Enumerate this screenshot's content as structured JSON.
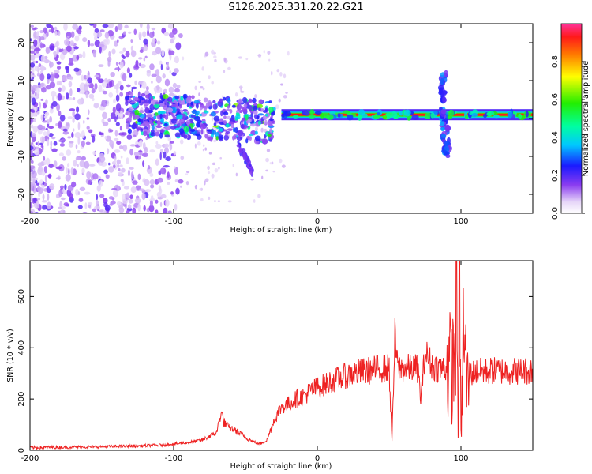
{
  "title": "S126.2025.331.20.22.G21",
  "chart_data": [
    {
      "type": "heatmap",
      "xlabel": "Height of straight line (km)",
      "ylabel": "Frequency (Hz)",
      "xlim": [
        -200,
        150
      ],
      "ylim": [
        -25,
        25
      ],
      "xticks": [
        -200,
        -100,
        0,
        100
      ],
      "yticks": [
        -20,
        -10,
        0,
        10,
        20
      ],
      "colorbar": {
        "label": "Normalized spectral amplitude",
        "range": [
          0,
          1
        ],
        "ticks": [
          "0.0",
          "0.2",
          "0.4",
          "0.6",
          "0.8"
        ]
      },
      "features": [
        {
          "name": "noise-field",
          "x": [
            -200,
            -95
          ],
          "freq": [
            -25,
            25
          ],
          "amplitude": 0.2
        },
        {
          "name": "scattered-band",
          "x": [
            -133,
            -30
          ],
          "freq": [
            -6,
            7
          ],
          "amplitude": 0.45
        },
        {
          "name": "descending-tail",
          "x": [
            -55,
            -45
          ],
          "freq": [
            -14,
            -6
          ],
          "amplitude": 0.2
        },
        {
          "name": "stable-line",
          "x": [
            -25,
            150
          ],
          "freq": [
            0.5,
            1.5
          ],
          "amplitude": 0.95
        },
        {
          "name": "spike-near-90",
          "x": [
            86,
            95
          ],
          "freq": [
            -10,
            12
          ],
          "amplitude": 0.35
        }
      ]
    },
    {
      "type": "line",
      "xlabel": "Height of straight line (km)",
      "ylabel": "SNR (10 * v/v)",
      "xlim": [
        -200,
        150
      ],
      "ylim": [
        0,
        740
      ],
      "xticks": [
        -200,
        -100,
        0,
        100
      ],
      "yticks": [
        0,
        200,
        400,
        600
      ],
      "series": [
        {
          "name": "SNR",
          "color": "#ee2222",
          "x": [
            -200,
            -180,
            -160,
            -140,
            -120,
            -110,
            -100,
            -90,
            -80,
            -75,
            -70,
            -67,
            -65,
            -62,
            -58,
            -55,
            -50,
            -45,
            -40,
            -35,
            -30,
            -25,
            -20,
            -15,
            -10,
            -5,
            0,
            5,
            10,
            15,
            20,
            25,
            30,
            35,
            40,
            45,
            50,
            52,
            54,
            56,
            60,
            65,
            70,
            72,
            75,
            80,
            85,
            90,
            95,
            97,
            98,
            99,
            100,
            102,
            104,
            106,
            110,
            120,
            130,
            140,
            150
          ],
          "y": [
            10,
            12,
            13,
            15,
            18,
            20,
            25,
            30,
            40,
            55,
            70,
            150,
            110,
            90,
            80,
            70,
            50,
            35,
            25,
            40,
            120,
            170,
            180,
            200,
            210,
            230,
            245,
            255,
            270,
            280,
            290,
            300,
            305,
            310,
            315,
            320,
            320,
            40,
            440,
            320,
            320,
            320,
            320,
            200,
            380,
            330,
            320,
            320,
            330,
            620,
            100,
            700,
            50,
            500,
            250,
            300,
            305,
            310,
            310,
            310,
            310
          ]
        }
      ]
    }
  ]
}
